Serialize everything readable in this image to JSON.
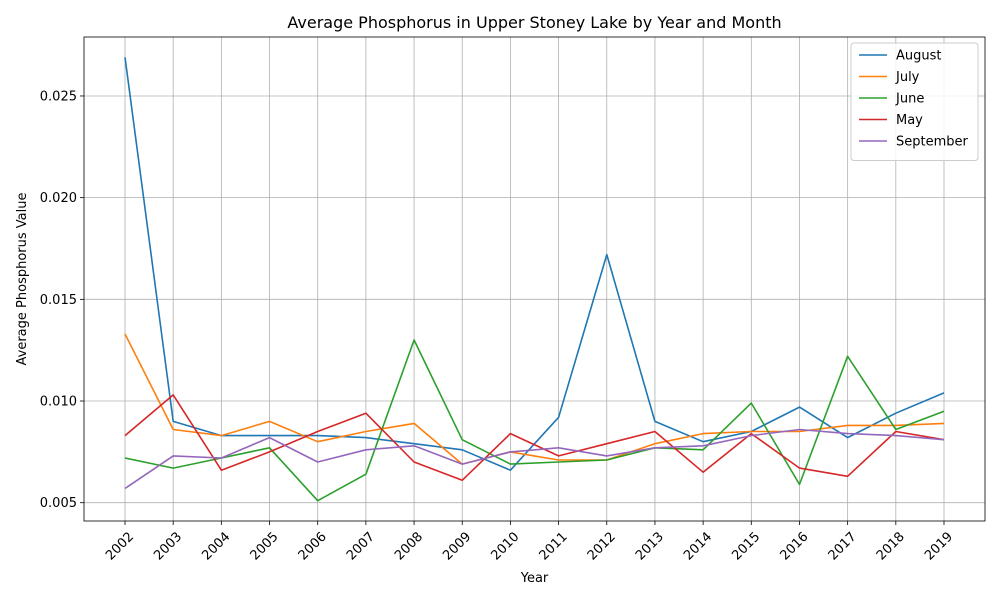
{
  "chart_data": {
    "type": "line",
    "title": "Average Phosphorus in Upper Stoney Lake by Year and Month",
    "xlabel": "Year",
    "ylabel": "Average Phosphorus Value",
    "x": [
      "2002",
      "2003",
      "2004",
      "2005",
      "2006",
      "2007",
      "2008",
      "2009",
      "2010",
      "2011",
      "2012",
      "2013",
      "2014",
      "2015",
      "2016",
      "2017",
      "2018",
      "2019"
    ],
    "ylim": [
      0.0041,
      0.0279
    ],
    "yticks": [
      "0.005",
      "0.010",
      "0.015",
      "0.020",
      "0.025"
    ],
    "grid": true,
    "legend_position": "top-right",
    "series": [
      {
        "name": "August",
        "color": "#1f77b4",
        "values": [
          0.0269,
          0.009,
          0.0083,
          0.0083,
          0.0083,
          0.0082,
          0.0079,
          0.0076,
          0.0066,
          0.0092,
          0.0172,
          0.009,
          0.008,
          0.0085,
          0.0097,
          0.0082,
          0.0094,
          0.0104
        ]
      },
      {
        "name": "July",
        "color": "#ff7f0e",
        "values": [
          0.0133,
          0.0086,
          0.0083,
          0.009,
          0.008,
          0.0085,
          0.0089,
          0.0069,
          0.0075,
          0.0071,
          0.0071,
          0.0079,
          0.0084,
          0.0085,
          0.0085,
          0.0088,
          0.0088,
          0.0089
        ]
      },
      {
        "name": "June",
        "color": "#2ca02c",
        "values": [
          0.0072,
          0.0067,
          0.0072,
          0.0077,
          0.0051,
          0.0064,
          0.013,
          0.0081,
          0.0069,
          0.007,
          0.0071,
          0.0077,
          0.0076,
          0.0099,
          0.0059,
          0.0122,
          0.0086,
          0.0095
        ]
      },
      {
        "name": "May",
        "color": "#d62728",
        "values": [
          0.0083,
          0.0103,
          0.0066,
          0.0075,
          0.0085,
          0.0094,
          0.007,
          0.0061,
          0.0084,
          0.0073,
          0.0079,
          0.0085,
          0.0065,
          0.0084,
          0.0067,
          0.0063,
          0.0085,
          0.0081
        ]
      },
      {
        "name": "September",
        "color": "#9467bd",
        "values": [
          0.0057,
          0.0073,
          0.0072,
          0.0082,
          0.007,
          0.0076,
          0.0078,
          0.0069,
          0.0075,
          0.0077,
          0.0073,
          0.0077,
          0.0078,
          0.0083,
          0.0086,
          0.0084,
          0.0083,
          0.0081
        ]
      }
    ]
  }
}
